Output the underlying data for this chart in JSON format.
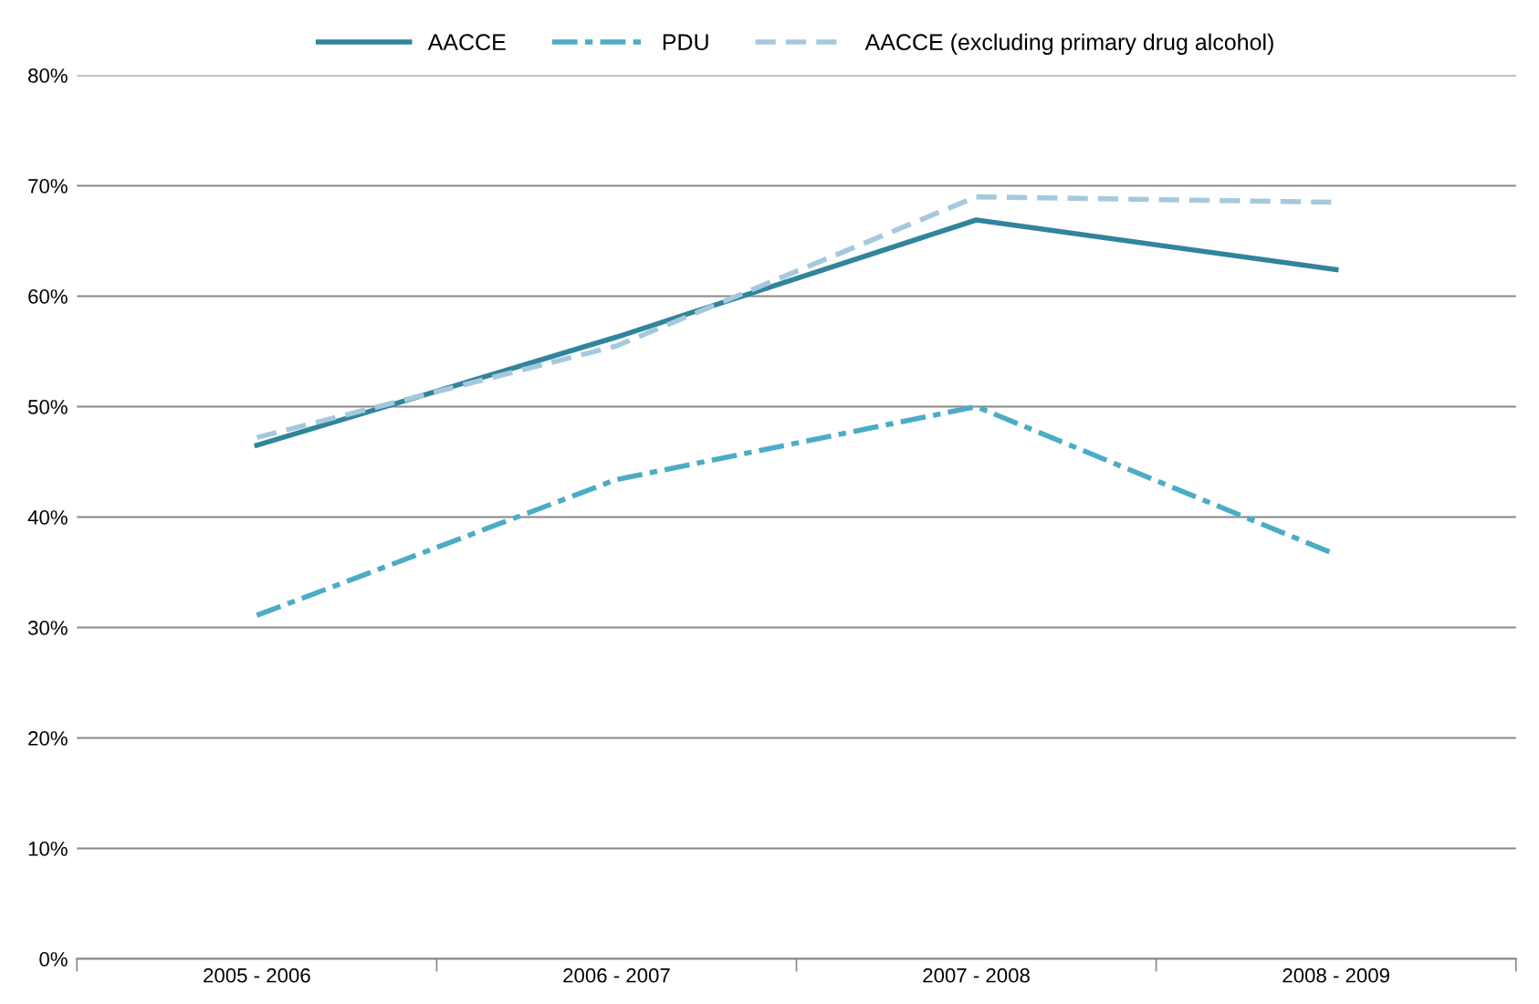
{
  "chart_data": {
    "type": "line",
    "categories": [
      "2005 - 2006",
      "2006 - 2007",
      "2007 - 2008",
      "2008 - 2009"
    ],
    "series": [
      {
        "name": "AACCE",
        "color": "#31849b",
        "line_style": "solid",
        "values": [
          46.5,
          56.3,
          66.9,
          62.4
        ]
      },
      {
        "name": "PDU",
        "color": "#4bacc6",
        "line_style": "dashdot",
        "values": [
          31.1,
          43.4,
          50.0,
          36.6
        ]
      },
      {
        "name": "AACCE (excluding primary drug alcohol)",
        "color": "#a5c9dc",
        "line_style": "dashed",
        "values": [
          47.2,
          55.5,
          69.0,
          68.5
        ]
      }
    ],
    "ylim": [
      0,
      80
    ],
    "yticks": [
      {
        "value": 0,
        "label": "0%"
      },
      {
        "value": 10,
        "label": "10%"
      },
      {
        "value": 20,
        "label": "20%"
      },
      {
        "value": 30,
        "label": "30%"
      },
      {
        "value": 40,
        "label": "40%"
      },
      {
        "value": 50,
        "label": "50%"
      },
      {
        "value": 60,
        "label": "60%"
      },
      {
        "value": 70,
        "label": "70%"
      },
      {
        "value": 80,
        "label": "80%"
      }
    ],
    "grid": "y",
    "legend": "top",
    "marker": "none"
  }
}
